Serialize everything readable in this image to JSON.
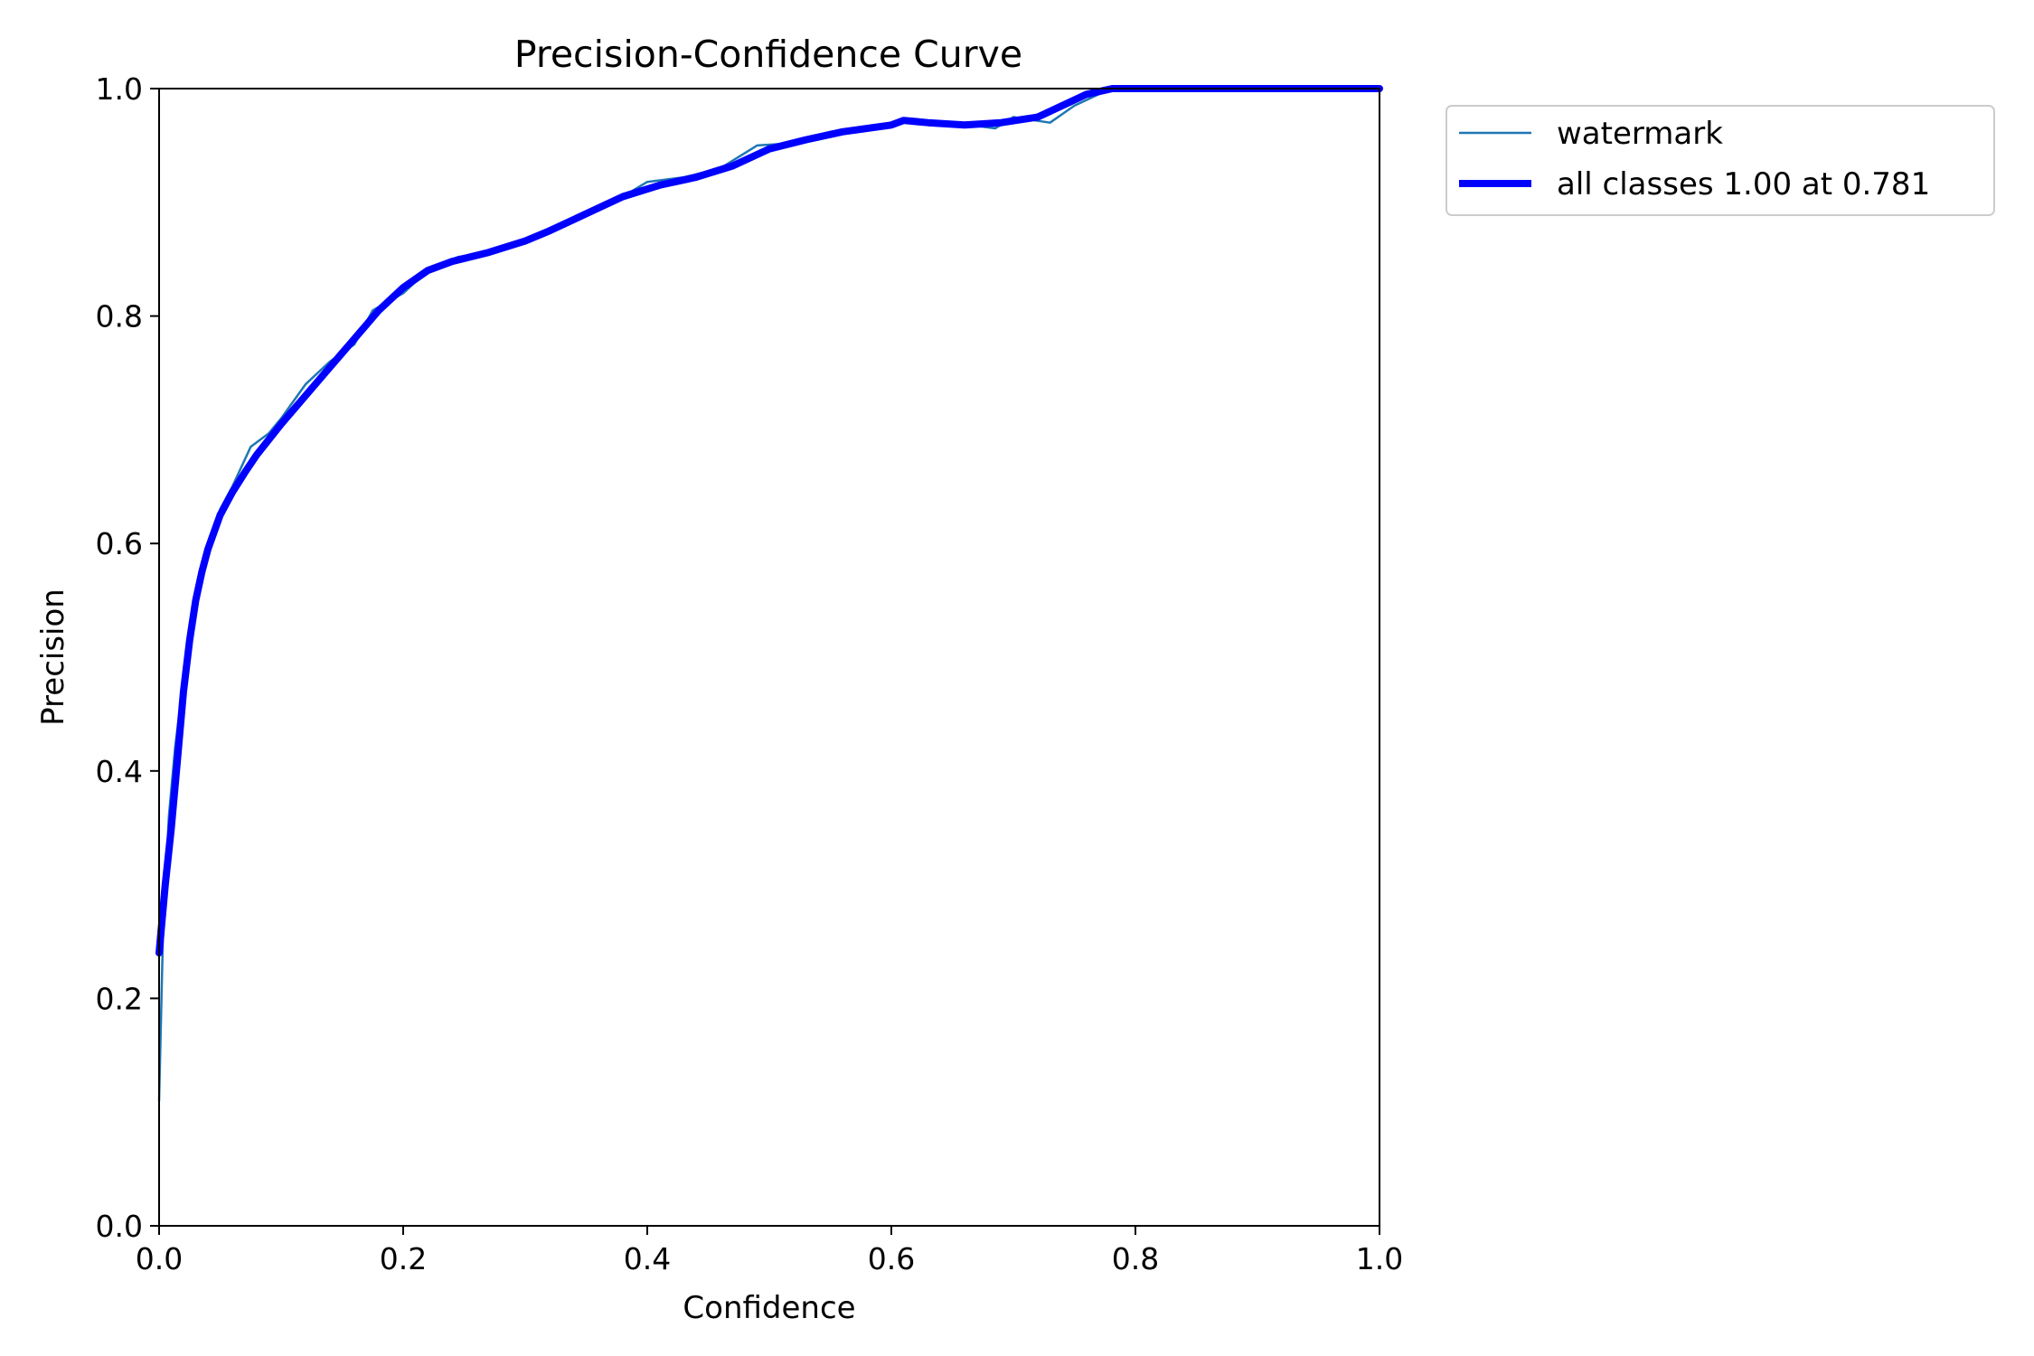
{
  "chart_data": {
    "type": "line",
    "title": "Precision-Confidence Curve",
    "xlabel": "Confidence",
    "ylabel": "Precision",
    "xlim": [
      0.0,
      1.0
    ],
    "ylim": [
      0.0,
      1.0
    ],
    "xticks": [
      "0.0",
      "0.2",
      "0.4",
      "0.6",
      "0.8",
      "1.0"
    ],
    "yticks": [
      "0.0",
      "0.2",
      "0.4",
      "0.6",
      "0.8",
      "1.0"
    ],
    "grid": false,
    "legend_position": "outside-top-right",
    "series": [
      {
        "name": "watermark",
        "color": "#1f77b4",
        "style": "thin",
        "x": [
          0.0,
          0.003,
          0.008,
          0.013,
          0.02,
          0.03,
          0.04,
          0.05,
          0.06,
          0.075,
          0.09,
          0.1,
          0.12,
          0.14,
          0.16,
          0.175,
          0.2,
          0.22,
          0.245,
          0.27,
          0.3,
          0.33,
          0.36,
          0.38,
          0.4,
          0.43,
          0.46,
          0.49,
          0.52,
          0.55,
          0.58,
          0.6,
          0.62,
          0.65,
          0.685,
          0.7,
          0.73,
          0.75,
          0.77,
          0.78,
          0.8,
          0.85,
          0.9,
          0.95,
          1.0
        ],
        "y": [
          0.11,
          0.25,
          0.36,
          0.42,
          0.48,
          0.555,
          0.59,
          0.63,
          0.65,
          0.685,
          0.697,
          0.71,
          0.74,
          0.76,
          0.775,
          0.805,
          0.82,
          0.84,
          0.852,
          0.856,
          0.865,
          0.88,
          0.895,
          0.905,
          0.918,
          0.922,
          0.93,
          0.95,
          0.952,
          0.962,
          0.964,
          0.97,
          0.97,
          0.97,
          0.965,
          0.975,
          0.97,
          0.985,
          0.995,
          1.0,
          1.0,
          1.0,
          1.0,
          1.0,
          1.0
        ]
      },
      {
        "name": "all classes 1.00 at 0.781",
        "color": "#0000ff",
        "style": "thick",
        "x": [
          0.0,
          0.005,
          0.01,
          0.015,
          0.02,
          0.025,
          0.03,
          0.035,
          0.04,
          0.05,
          0.06,
          0.07,
          0.08,
          0.1,
          0.12,
          0.14,
          0.16,
          0.18,
          0.2,
          0.22,
          0.24,
          0.27,
          0.3,
          0.32,
          0.35,
          0.38,
          0.41,
          0.44,
          0.47,
          0.5,
          0.53,
          0.56,
          0.6,
          0.61,
          0.63,
          0.66,
          0.69,
          0.72,
          0.74,
          0.76,
          0.781,
          0.8,
          0.85,
          0.9,
          0.95,
          1.0
        ],
        "y": [
          0.24,
          0.3,
          0.35,
          0.41,
          0.47,
          0.515,
          0.55,
          0.575,
          0.595,
          0.625,
          0.645,
          0.662,
          0.678,
          0.705,
          0.73,
          0.755,
          0.78,
          0.805,
          0.825,
          0.84,
          0.848,
          0.856,
          0.866,
          0.875,
          0.89,
          0.905,
          0.915,
          0.922,
          0.932,
          0.947,
          0.955,
          0.962,
          0.968,
          0.972,
          0.97,
          0.968,
          0.97,
          0.975,
          0.985,
          0.995,
          1.0,
          1.0,
          1.0,
          1.0,
          1.0,
          1.0
        ]
      }
    ]
  }
}
